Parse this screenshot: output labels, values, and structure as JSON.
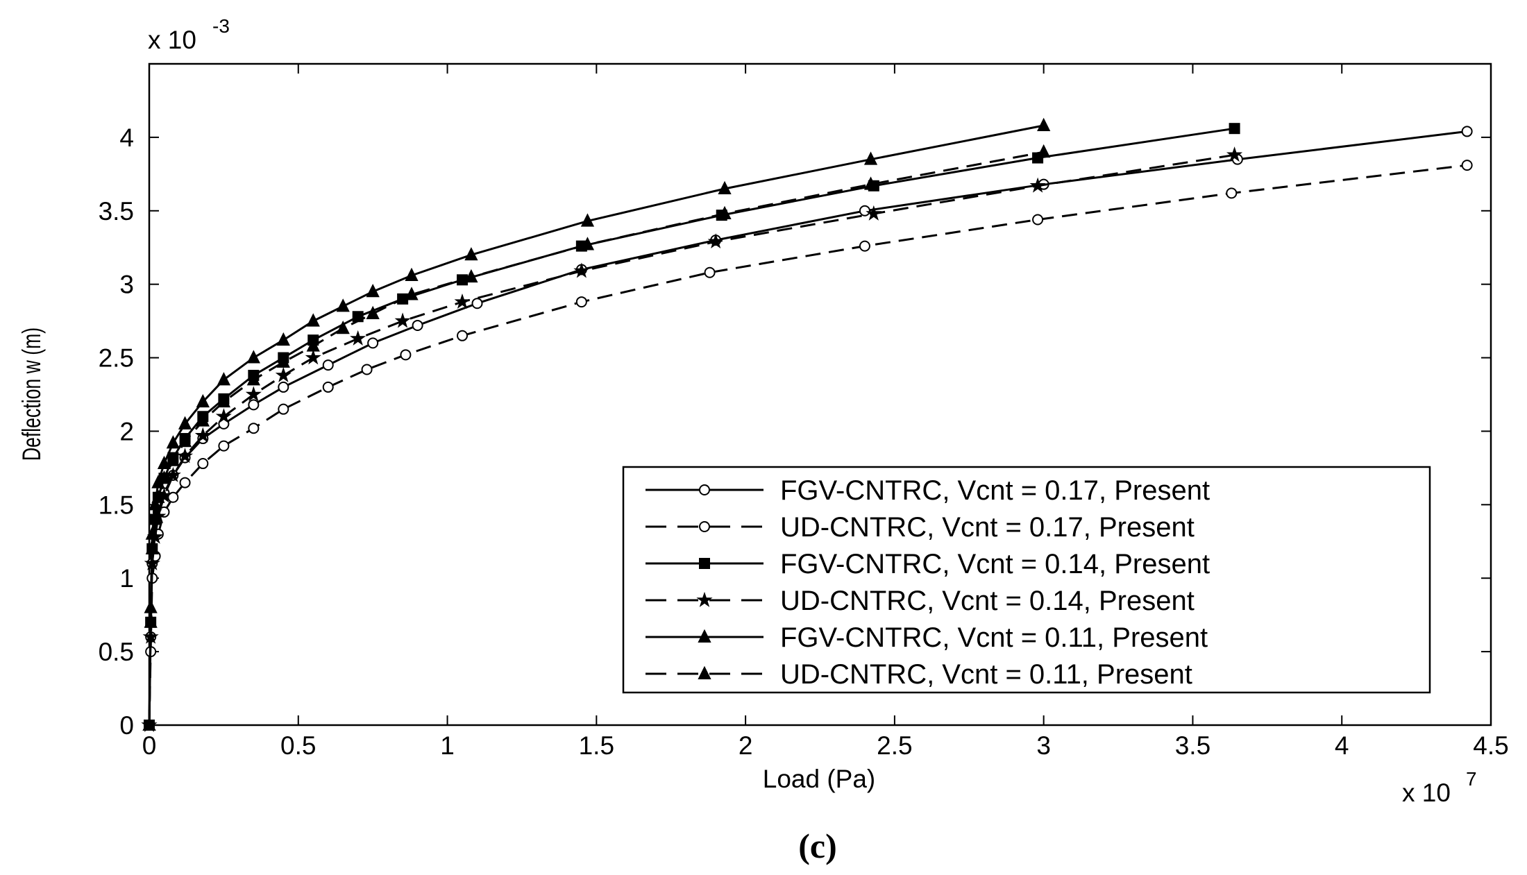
{
  "chart_data": {
    "type": "line",
    "title": "",
    "xlabel": "Load (Pa)",
    "ylabel": "Deflection w (m)",
    "x_multiplier": "x 10",
    "x_multiplier_exp": "7",
    "y_multiplier": "x 10",
    "y_multiplier_exp": "-3",
    "xlim": [
      0,
      4.5
    ],
    "ylim": [
      0,
      4.5
    ],
    "x_ticks": [
      "0",
      "0.5",
      "1",
      "1.5",
      "2",
      "2.5",
      "3",
      "3.5",
      "4",
      "4.5"
    ],
    "y_ticks": [
      "0",
      "0.5",
      "1",
      "1.5",
      "2",
      "2.5",
      "3",
      "3.5",
      "4"
    ],
    "grid": false,
    "legend_position": "lower-right",
    "caption": "(c)",
    "series": [
      {
        "name": "FGV-CNTRC, Vcnt = 0.17, Present",
        "line": "solid",
        "marker": "circle",
        "x": [
          0,
          0.005,
          0.01,
          0.02,
          0.03,
          0.05,
          0.08,
          0.12,
          0.18,
          0.25,
          0.35,
          0.45,
          0.6,
          0.75,
          0.9,
          1.1,
          1.45,
          1.9,
          2.4,
          3.0,
          3.65,
          4.42
        ],
        "y": [
          0,
          0.6,
          1.1,
          1.3,
          1.45,
          1.58,
          1.7,
          1.82,
          1.95,
          2.05,
          2.18,
          2.3,
          2.45,
          2.6,
          2.72,
          2.87,
          3.1,
          3.3,
          3.5,
          3.68,
          3.85,
          4.04
        ]
      },
      {
        "name": "UD-CNTRC, Vcnt = 0.17, Present",
        "line": "dashed",
        "marker": "circle",
        "x": [
          0,
          0.005,
          0.01,
          0.02,
          0.03,
          0.05,
          0.08,
          0.12,
          0.18,
          0.25,
          0.35,
          0.45,
          0.6,
          0.73,
          0.86,
          1.05,
          1.45,
          1.88,
          2.4,
          2.98,
          3.63,
          4.42
        ],
        "y": [
          0,
          0.5,
          1.0,
          1.15,
          1.3,
          1.45,
          1.55,
          1.65,
          1.78,
          1.9,
          2.02,
          2.15,
          2.3,
          2.42,
          2.52,
          2.65,
          2.88,
          3.08,
          3.26,
          3.44,
          3.62,
          3.81
        ]
      },
      {
        "name": "FGV-CNTRC, Vcnt = 0.14, Present",
        "line": "solid",
        "marker": "square",
        "x": [
          0,
          0.005,
          0.01,
          0.02,
          0.03,
          0.05,
          0.08,
          0.12,
          0.18,
          0.25,
          0.35,
          0.45,
          0.55,
          0.7,
          0.85,
          1.05,
          1.45,
          1.92,
          2.43,
          2.98,
          3.64
        ],
        "y": [
          0,
          0.7,
          1.2,
          1.4,
          1.55,
          1.68,
          1.82,
          1.95,
          2.1,
          2.22,
          2.38,
          2.5,
          2.62,
          2.78,
          2.9,
          3.03,
          3.26,
          3.47,
          3.67,
          3.86,
          4.06
        ]
      },
      {
        "name": "UD-CNTRC, Vcnt = 0.14, Present",
        "line": "dashed",
        "marker": "star",
        "x": [
          0,
          0.005,
          0.01,
          0.02,
          0.03,
          0.05,
          0.08,
          0.12,
          0.18,
          0.25,
          0.35,
          0.45,
          0.55,
          0.7,
          0.85,
          1.05,
          1.45,
          1.9,
          2.43,
          2.98,
          3.64
        ],
        "y": [
          0,
          0.6,
          1.1,
          1.28,
          1.42,
          1.56,
          1.7,
          1.83,
          1.97,
          2.1,
          2.25,
          2.38,
          2.5,
          2.63,
          2.75,
          2.88,
          3.09,
          3.29,
          3.48,
          3.67,
          3.88
        ]
      },
      {
        "name": "FGV-CNTRC, Vcnt = 0.11, Present",
        "line": "solid",
        "marker": "triangle",
        "x": [
          0,
          0.005,
          0.01,
          0.02,
          0.03,
          0.05,
          0.08,
          0.12,
          0.18,
          0.25,
          0.35,
          0.45,
          0.55,
          0.65,
          0.75,
          0.88,
          1.08,
          1.47,
          1.93,
          2.42,
          3.0
        ],
        "y": [
          0,
          0.8,
          1.3,
          1.5,
          1.65,
          1.78,
          1.92,
          2.05,
          2.2,
          2.35,
          2.5,
          2.62,
          2.75,
          2.85,
          2.95,
          3.06,
          3.2,
          3.43,
          3.65,
          3.85,
          4.08
        ]
      },
      {
        "name": "UD-CNTRC, Vcnt = 0.11, Present",
        "line": "dashed",
        "marker": "triangle",
        "x": [
          0,
          0.005,
          0.01,
          0.02,
          0.03,
          0.05,
          0.08,
          0.12,
          0.18,
          0.25,
          0.35,
          0.45,
          0.55,
          0.65,
          0.75,
          0.88,
          1.08,
          1.47,
          1.93,
          2.42,
          3.0
        ],
        "y": [
          0,
          0.7,
          1.2,
          1.4,
          1.55,
          1.68,
          1.8,
          1.93,
          2.07,
          2.2,
          2.35,
          2.47,
          2.58,
          2.7,
          2.8,
          2.93,
          3.05,
          3.27,
          3.48,
          3.68,
          3.9
        ]
      }
    ]
  }
}
